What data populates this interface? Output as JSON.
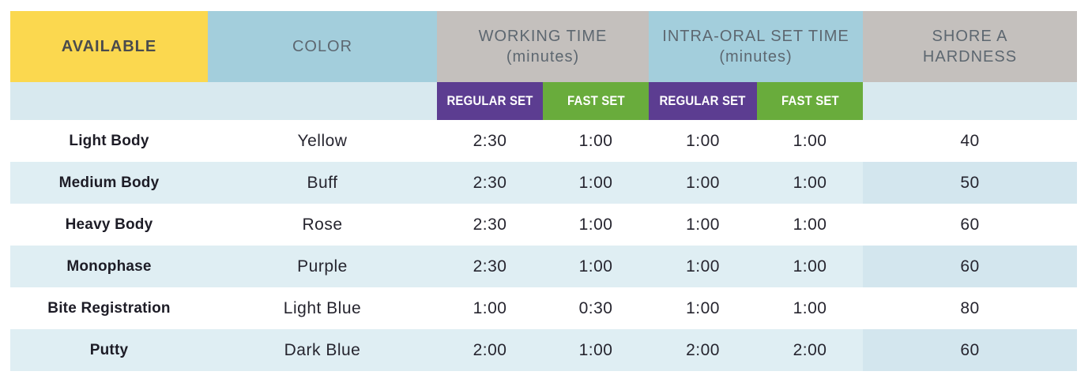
{
  "table": {
    "header": {
      "available": "AVAILABLE",
      "color": "COLOR",
      "working_time": "WORKING TIME\n(minutes)",
      "intra_oral": "INTRA-ORAL SET TIME\n(minutes)",
      "shore": "SHORE A\nHARDNESS",
      "regular_set": "REGULAR SET",
      "fast_set": "FAST SET"
    },
    "rows": [
      {
        "available": "Light Body",
        "color": "Yellow",
        "wt_regular": "2:30",
        "wt_fast": "1:00",
        "io_regular": "1:00",
        "io_fast": "1:00",
        "hardness": "40"
      },
      {
        "available": "Medium Body",
        "color": "Buff",
        "wt_regular": "2:30",
        "wt_fast": "1:00",
        "io_regular": "1:00",
        "io_fast": "1:00",
        "hardness": "50"
      },
      {
        "available": "Heavy Body",
        "color": "Rose",
        "wt_regular": "2:30",
        "wt_fast": "1:00",
        "io_regular": "1:00",
        "io_fast": "1:00",
        "hardness": "60"
      },
      {
        "available": "Monophase",
        "color": "Purple",
        "wt_regular": "2:30",
        "wt_fast": "1:00",
        "io_regular": "1:00",
        "io_fast": "1:00",
        "hardness": "60"
      },
      {
        "available": "Bite Registration",
        "color": "Light Blue",
        "wt_regular": "1:00",
        "wt_fast": "0:30",
        "io_regular": "1:00",
        "io_fast": "1:00",
        "hardness": "80"
      },
      {
        "available": "Putty",
        "color": "Dark Blue",
        "wt_regular": "2:00",
        "wt_fast": "1:00",
        "io_regular": "2:00",
        "io_fast": "2:00",
        "hardness": "60"
      }
    ],
    "colors": {
      "available_yellow": "#FBD84F",
      "header_blue": "#A3CEDC",
      "header_gray": "#C4C0BD",
      "regular_set_purple": "#5C3D91",
      "fast_set_green": "#69AC3C",
      "subheader_band_blue": "#D8E9EF",
      "alt_row_blue": "#DFEEF3",
      "alt_row_hardness_blue": "#D3E6EE"
    }
  }
}
